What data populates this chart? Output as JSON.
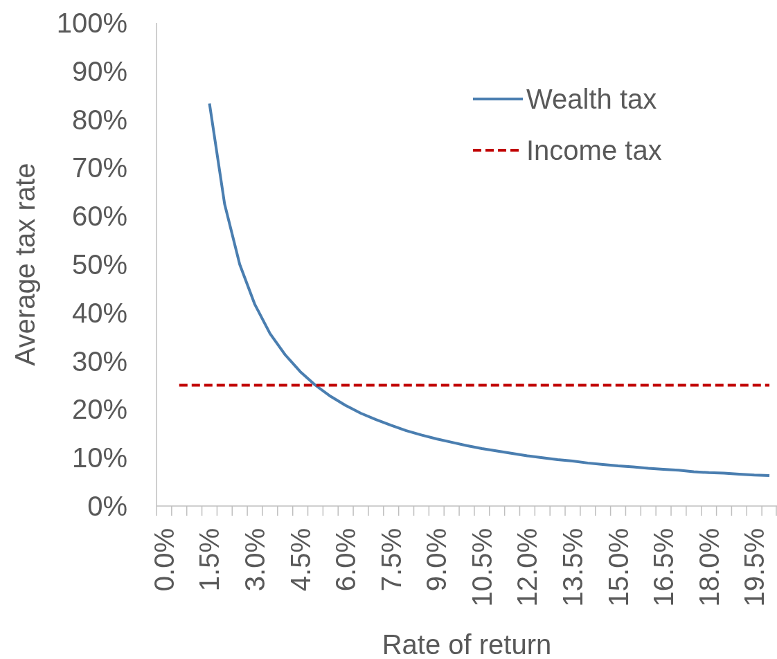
{
  "chart_data": {
    "type": "line",
    "xlabel": "Rate of return",
    "ylabel": "Average tax rate",
    "categories": [
      "0.0%",
      null,
      null,
      "1.5%",
      null,
      null,
      "3.0%",
      null,
      null,
      "4.5%",
      null,
      null,
      "6.0%",
      null,
      null,
      "7.5%",
      null,
      null,
      "9.0%",
      null,
      null,
      "10.5%",
      null,
      null,
      "12.0%",
      null,
      null,
      "13.5%",
      null,
      null,
      "15.0%",
      null,
      null,
      "16.5%",
      null,
      null,
      "18.0%",
      null,
      null,
      "19.5%",
      null
    ],
    "series": [
      {
        "name": "Wealth tax",
        "color": "#4a7eb0",
        "line_style": "solid",
        "values": [
          null,
          null,
          null,
          83.3,
          62.5,
          50,
          41.7,
          35.7,
          31.3,
          27.8,
          25,
          22.7,
          20.8,
          19.2,
          17.9,
          16.7,
          15.6,
          14.7,
          13.9,
          13.2,
          12.5,
          11.9,
          11.4,
          10.9,
          10.4,
          10,
          9.6,
          9.3,
          8.9,
          8.6,
          8.3,
          8.1,
          7.8,
          7.6,
          7.4,
          7.1,
          6.9,
          6.8,
          6.6,
          6.4,
          6.3
        ]
      },
      {
        "name": "Income tax",
        "color": "#c00000",
        "line_style": "dashed",
        "values": [
          null,
          25,
          25,
          25,
          25,
          25,
          25,
          25,
          25,
          25,
          25,
          25,
          25,
          25,
          25,
          25,
          25,
          25,
          25,
          25,
          25,
          25,
          25,
          25,
          25,
          25,
          25,
          25,
          25,
          25,
          25,
          25,
          25,
          25,
          25,
          25,
          25,
          25,
          25,
          25,
          25
        ]
      }
    ],
    "ylim": [
      0,
      100
    ],
    "yticks": [
      {
        "value": 0,
        "label": "0%"
      },
      {
        "value": 10,
        "label": "10%"
      },
      {
        "value": 20,
        "label": "20%"
      },
      {
        "value": 30,
        "label": "30%"
      },
      {
        "value": 40,
        "label": "40%"
      },
      {
        "value": 50,
        "label": "50%"
      },
      {
        "value": 60,
        "label": "60%"
      },
      {
        "value": 70,
        "label": "70%"
      },
      {
        "value": 80,
        "label": "80%"
      },
      {
        "value": 90,
        "label": "90%"
      },
      {
        "value": 100,
        "label": "100%"
      }
    ],
    "grid": false,
    "legend": "top right"
  }
}
